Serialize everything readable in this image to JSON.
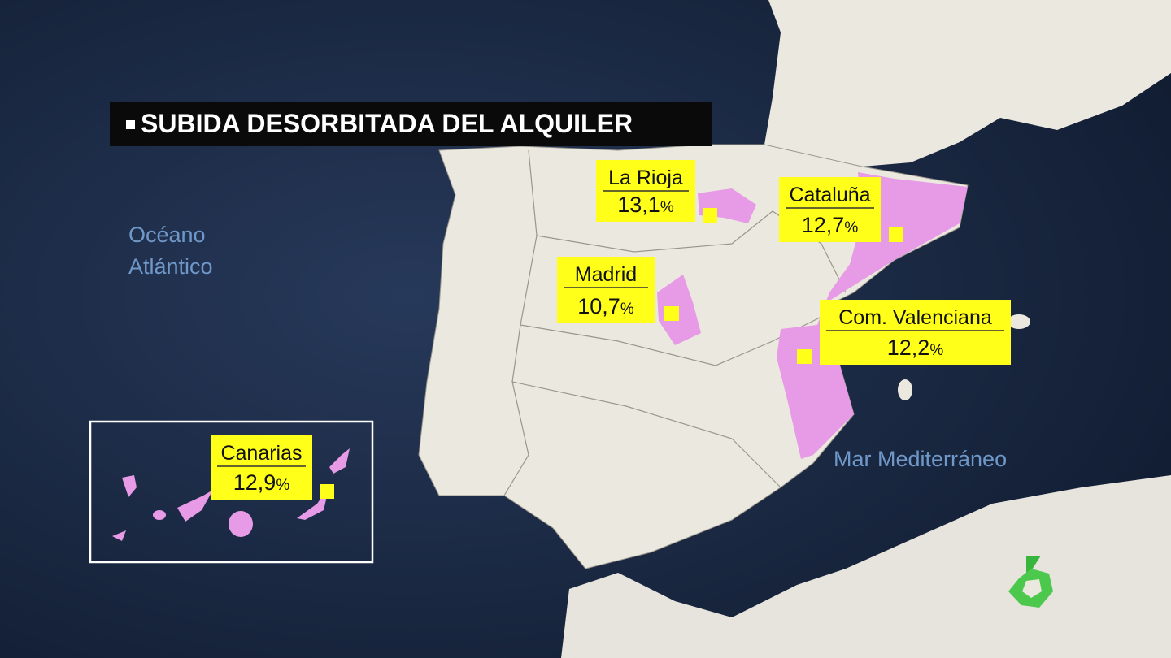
{
  "title": "SUBIDA DESORBITADA DEL ALQUILER",
  "sea_labels": {
    "atlantic": [
      "Océano",
      "Atlántico"
    ],
    "mediterranean": "Mar Mediterráneo"
  },
  "regions": [
    {
      "name": "La Rioja",
      "value": "13,1",
      "unit": "%"
    },
    {
      "name": "Cataluña",
      "value": "12,7",
      "unit": "%"
    },
    {
      "name": "Madrid",
      "value": "10,7",
      "unit": "%"
    },
    {
      "name": "Com. Valenciana",
      "value": "12,2",
      "unit": "%"
    },
    {
      "name": "Canarias",
      "value": "12,9",
      "unit": "%"
    }
  ]
}
